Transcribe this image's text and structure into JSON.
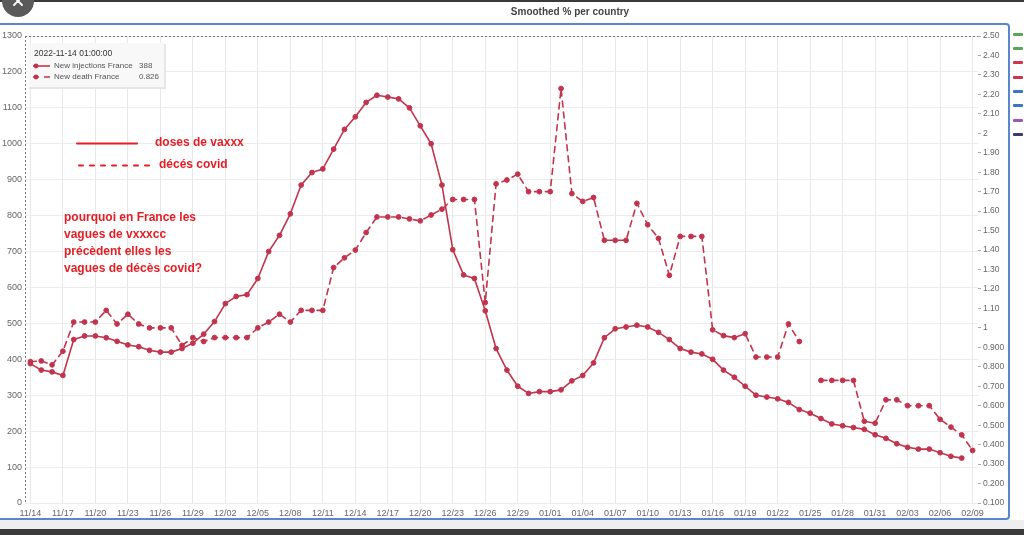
{
  "chart_data": {
    "type": "line",
    "title": "Smoothed % per country",
    "categories": [
      "11/14",
      null,
      null,
      "11/17",
      null,
      null,
      "11/20",
      null,
      null,
      "11/23",
      null,
      null,
      "11/26",
      null,
      null,
      "11/29",
      null,
      null,
      "12/02",
      null,
      null,
      "12/05",
      null,
      null,
      "12/08",
      null,
      null,
      "12/11",
      null,
      null,
      "12/14",
      null,
      null,
      "12/17",
      null,
      null,
      "12/20",
      null,
      null,
      "12/23",
      null,
      null,
      "12/26",
      null,
      null,
      "12/29",
      null,
      null,
      "01/01",
      null,
      null,
      "01/04",
      null,
      null,
      "01/07",
      null,
      null,
      "01/10",
      null,
      null,
      "01/13",
      null,
      null,
      "01/16",
      null,
      null,
      "01/19",
      null,
      null,
      "01/22",
      null,
      null,
      "01/25",
      null,
      null,
      "01/28",
      null,
      null,
      "01/31",
      null,
      null,
      "02/03",
      null,
      null,
      "02/06",
      null,
      null,
      "02/09"
    ],
    "series": [
      {
        "name": "New injections France",
        "color": "#c2344d",
        "line_style": "solid",
        "values": [
          388,
          370,
          365,
          355,
          455,
          465,
          465,
          460,
          450,
          440,
          435,
          425,
          420,
          420,
          430,
          445,
          470,
          505,
          555,
          575,
          580,
          625,
          700,
          745,
          805,
          885,
          920,
          930,
          985,
          1040,
          1075,
          1115,
          1135,
          1130,
          1125,
          1100,
          1050,
          1000,
          885,
          705,
          635,
          625,
          535,
          430,
          370,
          325,
          305,
          310,
          310,
          315,
          340,
          355,
          390,
          460,
          485,
          490,
          495,
          490,
          475,
          455,
          430,
          420,
          415,
          400,
          370,
          350,
          325,
          300,
          295,
          290,
          280,
          260,
          250,
          235,
          220,
          215,
          210,
          205,
          190,
          180,
          165,
          155,
          150,
          150,
          140,
          130,
          125,
          null
        ]
      },
      {
        "name": "New death France",
        "color": "#c2344d",
        "line_style": "dashed",
        "axis": "y2",
        "values": [
          0.826,
          0.83,
          0.81,
          0.88,
          1.03,
          1.03,
          1.03,
          1.09,
          1.02,
          1.07,
          1.02,
          1.0,
          1.0,
          1.0,
          0.91,
          0.95,
          0.93,
          0.95,
          0.95,
          0.95,
          0.95,
          1.0,
          1.03,
          1.07,
          1.03,
          1.09,
          1.09,
          1.09,
          1.31,
          1.36,
          1.4,
          1.49,
          1.57,
          1.57,
          1.57,
          1.56,
          1.55,
          1.58,
          1.61,
          1.66,
          1.66,
          1.66,
          1.13,
          1.74,
          1.76,
          1.79,
          1.7,
          1.7,
          1.7,
          2.23,
          1.69,
          1.65,
          1.67,
          1.45,
          1.45,
          1.45,
          1.64,
          1.53,
          1.46,
          1.27,
          1.47,
          1.47,
          1.47,
          0.99,
          0.96,
          0.95,
          0.97,
          0.85,
          0.85,
          0.85,
          1.02,
          0.93,
          null,
          0.73,
          0.73,
          0.73,
          0.73,
          0.52,
          0.51,
          0.63,
          0.63,
          0.6,
          0.6,
          0.6,
          0.53,
          0.49,
          0.45,
          0.37
        ]
      }
    ],
    "ylim": [
      0,
      1300
    ],
    "yticks": [
      0,
      100,
      200,
      300,
      400,
      500,
      600,
      700,
      800,
      900,
      1000,
      1100,
      1200,
      1300
    ],
    "y2lim": [
      0.1,
      2.5
    ],
    "y2ticks": [
      {
        "value": 0.1,
        "label": "0.100"
      },
      {
        "value": 0.2,
        "label": "0.200"
      },
      {
        "value": 0.3,
        "label": "0.300"
      },
      {
        "value": 0.4,
        "label": "0.400"
      },
      {
        "value": 0.5,
        "label": "0.500"
      },
      {
        "value": 0.6,
        "label": "0.600"
      },
      {
        "value": 0.7,
        "label": "0.700"
      },
      {
        "value": 0.8,
        "label": "0.800"
      },
      {
        "value": 0.9,
        "label": "0.900"
      },
      1,
      {
        "value": 1.1,
        "label": "1.10"
      },
      {
        "value": 1.2,
        "label": "1.20"
      },
      {
        "value": 1.3,
        "label": "1.30"
      },
      {
        "value": 1.4,
        "label": "1.40"
      },
      {
        "value": 1.5,
        "label": "1.50"
      },
      {
        "value": 1.6,
        "label": "1.60"
      },
      {
        "value": 1.7,
        "label": "1.70"
      },
      {
        "value": 1.8,
        "label": "1.80"
      },
      {
        "value": 1.9,
        "label": "1.90"
      },
      2,
      {
        "value": 2.1,
        "label": "2.10"
      },
      {
        "value": 2.2,
        "label": "2.20"
      },
      {
        "value": 2.3,
        "label": "2.30"
      },
      {
        "value": 2.4,
        "label": "2.40"
      },
      {
        "value": 2.5,
        "label": "2.50"
      }
    ],
    "grid": true,
    "legend": "top left",
    "legend_title": "2022-11-14 01:00:00",
    "marker": "circle",
    "annotations": [
      "388",
      "0.826",
      "doses de vaxxx",
      "décés covid",
      "pourquoi en France les\nvagues de vxxxcc\nprécèdent elles les\nvagues de décès covid?"
    ]
  }
}
